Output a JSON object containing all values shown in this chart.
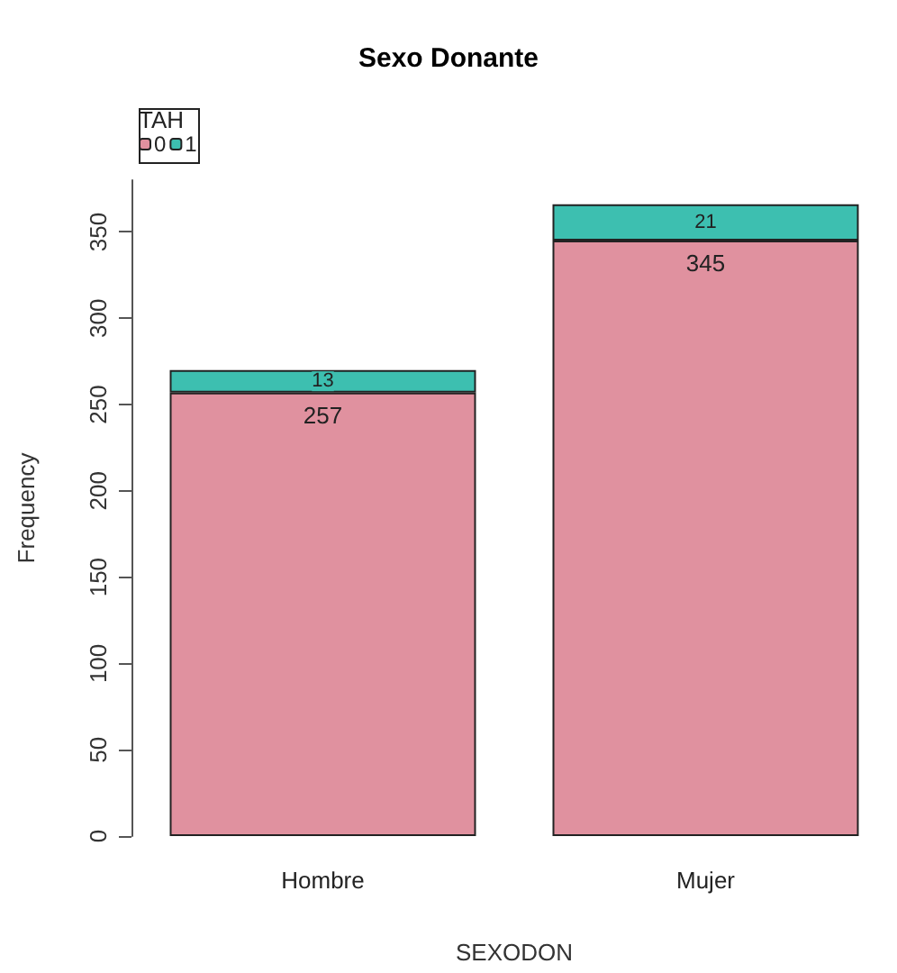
{
  "chart_data": {
    "type": "bar",
    "title": "Sexo Donante",
    "xlabel": "SEXODON",
    "ylabel": "Frequency",
    "legend_title": "TAH",
    "categories": [
      "Hombre",
      "Mujer"
    ],
    "stacked": true,
    "series": [
      {
        "name": "0",
        "color": "#e0919f",
        "values": [
          257,
          345
        ]
      },
      {
        "name": "1",
        "color": "#3dbfb0",
        "values": [
          13,
          21
        ]
      }
    ],
    "ylim": [
      0,
      380
    ],
    "yticks": [
      0,
      50,
      100,
      150,
      200,
      250,
      300,
      350
    ],
    "data_labels": true,
    "grid": false,
    "legend": "top left"
  }
}
